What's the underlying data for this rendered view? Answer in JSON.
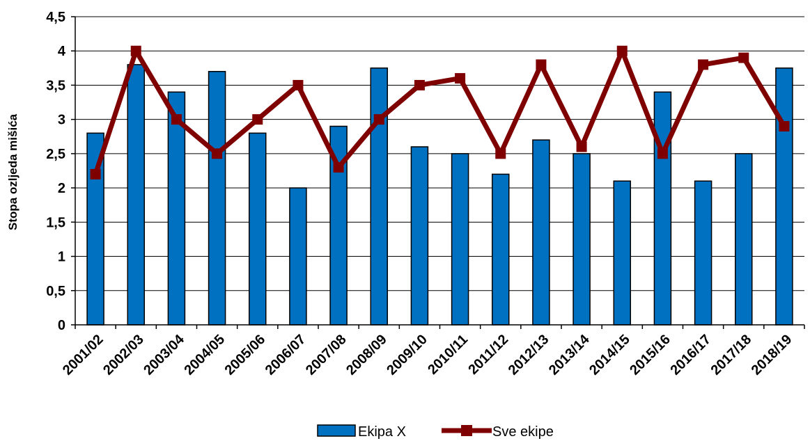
{
  "chart_data": {
    "type": "bar",
    "title": "",
    "xlabel": "",
    "ylabel": "Stopa ozljeda mišića",
    "ylim": [
      0,
      4.5
    ],
    "yticks": [
      "0",
      "0,5",
      "1",
      "1,5",
      "2",
      "2,5",
      "3",
      "3,5",
      "4",
      "4,5"
    ],
    "ytick_values": [
      0,
      0.5,
      1,
      1.5,
      2,
      2.5,
      3,
      3.5,
      4,
      4.5
    ],
    "grid": true,
    "legend_position": "bottom",
    "categories": [
      "2001/02",
      "2002/03",
      "2003/04",
      "2004/05",
      "2005/06",
      "2006/07",
      "2007/08",
      "2008/09",
      "2009/10",
      "2010/11",
      "2011/12",
      "2012/13",
      "2013/14",
      "2014/15",
      "2015/16",
      "2016/17",
      "2017/18",
      "2018/19"
    ],
    "series": [
      {
        "name": "Ekipa X",
        "type": "bar",
        "color": "#0070c0",
        "values": [
          2.8,
          3.8,
          3.4,
          3.7,
          2.8,
          2.0,
          2.9,
          3.75,
          2.6,
          2.5,
          2.2,
          2.7,
          2.5,
          2.1,
          3.4,
          2.1,
          2.5,
          3.75
        ]
      },
      {
        "name": "Sve ekipe",
        "type": "line",
        "color": "#7f0000",
        "marker": "square",
        "values": [
          2.2,
          4.0,
          3.0,
          2.5,
          3.0,
          3.5,
          2.3,
          3.0,
          3.5,
          3.6,
          2.5,
          3.8,
          2.6,
          4.0,
          2.5,
          3.8,
          3.9,
          2.9
        ]
      }
    ]
  }
}
